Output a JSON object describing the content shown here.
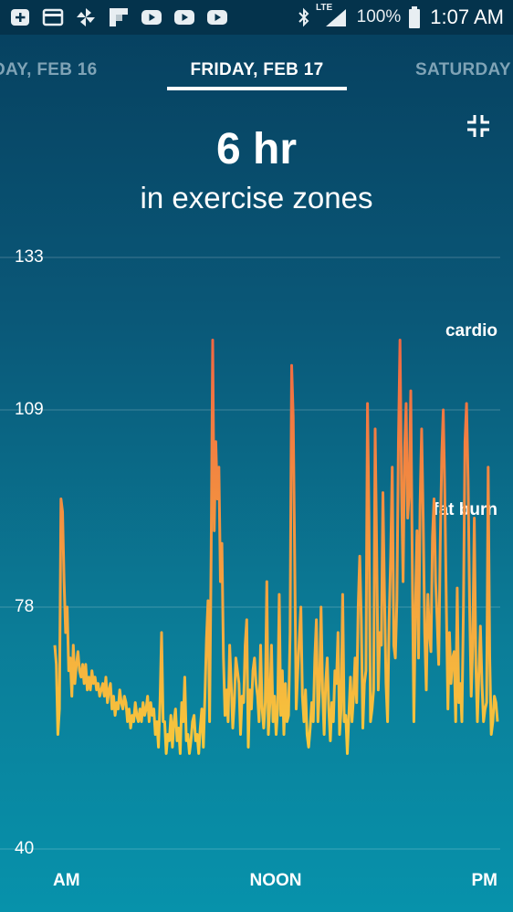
{
  "status_bar": {
    "notification_icons": [
      "add-box-icon",
      "card-icon",
      "pinwheel-icon",
      "flipboard-icon",
      "youtube-icon",
      "youtube-icon",
      "youtube-icon"
    ],
    "network_label": "LTE",
    "battery": "100%",
    "time": "1:07 AM"
  },
  "date_nav": {
    "previous": "DAY, FEB 16",
    "current": "FRIDAY, FEB 17",
    "next": "SATURDAY"
  },
  "summary": {
    "value": "6 hr",
    "label": "in exercise zones"
  },
  "chart_data": {
    "type": "line",
    "title": "",
    "y_ticks": [
      "133",
      "109",
      "78",
      "40"
    ],
    "ylim": [
      40,
      133
    ],
    "zones": [
      {
        "name": "cardio",
        "from": 109,
        "color": "#f26a3d"
      },
      {
        "name": "fat burn",
        "from": 78,
        "color": "#f7a93f"
      }
    ],
    "x_ticks": [
      "AM",
      "NOON",
      "PM"
    ],
    "line_colors": {
      "low": "#f7cc3c",
      "high": "#f06543"
    },
    "series": [
      {
        "values": [
          72,
          69,
          58,
          62,
          95,
          93,
          82,
          74,
          78,
          68,
          70,
          64,
          72,
          66,
          69,
          71,
          68,
          67,
          69,
          66,
          69,
          65,
          67,
          65,
          68,
          66,
          67,
          65,
          66,
          64,
          65,
          66,
          64,
          67,
          63,
          65,
          66,
          62,
          64,
          61,
          63,
          62,
          65,
          63,
          62,
          64,
          63,
          60,
          62,
          59,
          61,
          60,
          63,
          61,
          60,
          62,
          60,
          63,
          61,
          62,
          64,
          60,
          63,
          61,
          62,
          58,
          60,
          56,
          63,
          74,
          60,
          60,
          55,
          58,
          57,
          61,
          56,
          60,
          62,
          57,
          59,
          55,
          63,
          60,
          67,
          57,
          58,
          55,
          57,
          60,
          61,
          57,
          58,
          55,
          59,
          62,
          56,
          64,
          73,
          79,
          60,
          86,
          120,
          90,
          104,
          95,
          100,
          82,
          88,
          70,
          61,
          65,
          60,
          72,
          66,
          59,
          63,
          70,
          68,
          66,
          58,
          64,
          63,
          72,
          76,
          56,
          65,
          62,
          68,
          70,
          66,
          64,
          60,
          72,
          62,
          59,
          63,
          82,
          58,
          63,
          72,
          60,
          64,
          58,
          62,
          80,
          61,
          68,
          58,
          66,
          60,
          61,
          74,
          116,
          108,
          86,
          62,
          68,
          73,
          78,
          64,
          60,
          65,
          58,
          56,
          59,
          63,
          60,
          70,
          76,
          60,
          65,
          78,
          65,
          58,
          66,
          70,
          62,
          57,
          63,
          60,
          68,
          66,
          74,
          58,
          62,
          80,
          60,
          61,
          55,
          61,
          67,
          60,
          64,
          70,
          63,
          78,
          86,
          76,
          59,
          66,
          68,
          110,
          92,
          60,
          62,
          65,
          106,
          86,
          65,
          74,
          72,
          96,
          80,
          66,
          60,
          76,
          86,
          100,
          72,
          70,
          79,
          104,
          120,
          97,
          82,
          103,
          110,
          92,
          96,
          112,
          84,
          60,
          78,
          90,
          70,
          94,
          106,
          92,
          74,
          65,
          80,
          74,
          71,
          89,
          95,
          82,
          76,
          69,
          88,
          102,
          109,
          96,
          78,
          62,
          74,
          66,
          70,
          71,
          60,
          81,
          63,
          66,
          60,
          78,
          104,
          110,
          98,
          78,
          64,
          72,
          92,
          69,
          60,
          68,
          75,
          66,
          60,
          62,
          63,
          100,
          70,
          58,
          60,
          64,
          63,
          60
        ]
      }
    ]
  }
}
